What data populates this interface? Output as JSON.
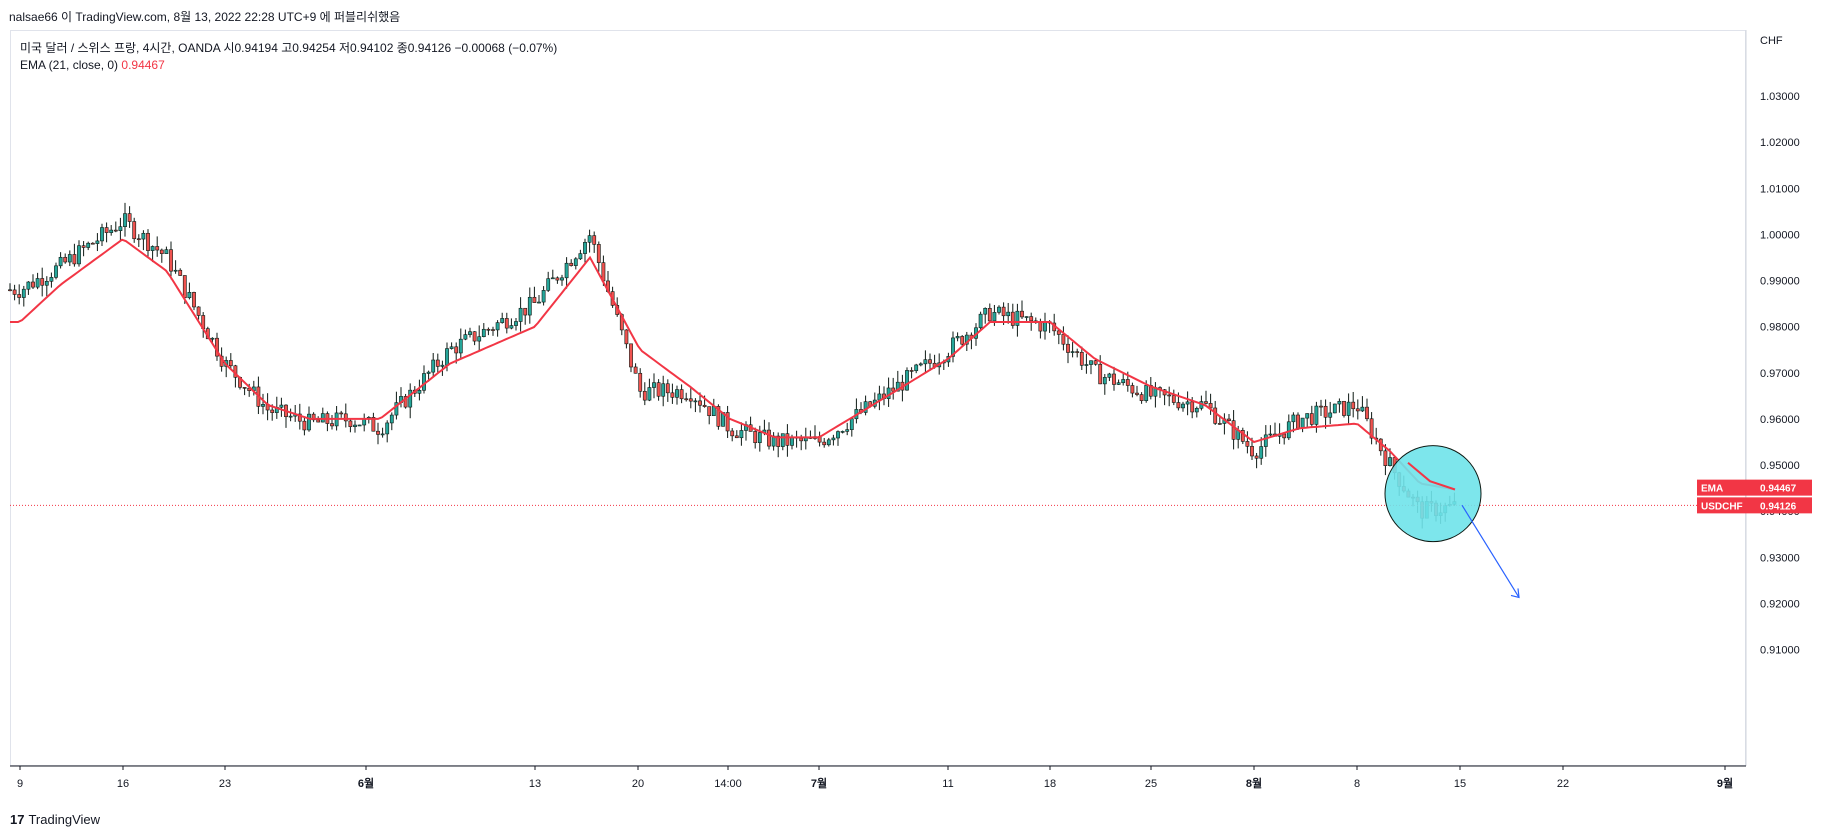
{
  "header": {
    "published": "nalsae66 이 TradingView.com, 8월 13, 2022 22:28 UTC+9 에 퍼블리쉬했음"
  },
  "legend": {
    "symbol_line": "미국 달러 / 스위스 프랑, 4시간, OANDA  시0.94194  고0.94254  저0.94102  종0.94126  −0.00068 (−0.07%)",
    "ema_label": "EMA (21, close, 0)",
    "ema_value": "0.94467"
  },
  "footer": {
    "brand": "TradingView",
    "logo_glyph": "17"
  },
  "colors": {
    "up_candle": "#26a69a",
    "down_candle": "#ef5350",
    "candle_body": "#0e1a14",
    "ema_line": "#f23645",
    "price_line": "#f23645",
    "highlight_fill": "#6fe3ea",
    "arrow": "#2962ff",
    "grid": "#e0e3eb"
  },
  "chart_data": {
    "type": "line",
    "title": "미국 달러 / 스위스 프랑, 4시간, OANDA",
    "y_currency_label": "CHF",
    "ylim": [
      0.9025,
      1.0385
    ],
    "y_ticks": [
      0.91,
      0.92,
      0.93,
      0.94,
      0.95,
      0.96,
      0.97,
      0.98,
      0.99,
      1.0,
      1.01,
      1.02,
      1.03
    ],
    "y_tick_labels": [
      "0.91000",
      "0.92000",
      "0.93000",
      "0.94000",
      "0.95000",
      "0.96000",
      "0.97000",
      "0.98000",
      "0.99000",
      "1.00000",
      "1.01000",
      "1.02000",
      "1.03000"
    ],
    "x_tick_labels": [
      "9",
      "16",
      "23",
      "6월",
      "13",
      "20",
      "14:00",
      "7월",
      "11",
      "18",
      "25",
      "8월",
      "8",
      "15",
      "22",
      "9월"
    ],
    "x_tick_bold": [
      false,
      false,
      false,
      true,
      false,
      false,
      false,
      true,
      false,
      false,
      false,
      true,
      false,
      false,
      false,
      true
    ],
    "series": [
      {
        "name": "USDCHF",
        "x": [
          "5/9",
          "5/12",
          "5/16",
          "5/19",
          "5/23",
          "5/26",
          "5/30",
          "6/2",
          "6/6",
          "6/9",
          "6/13",
          "6/16",
          "6/20",
          "6/23",
          "6/27",
          "6/30",
          "7/4",
          "7/7",
          "7/11",
          "7/14",
          "7/18",
          "7/21",
          "7/25",
          "7/28",
          "8/1",
          "8/4",
          "8/8",
          "8/10",
          "8/11",
          "8/12"
        ],
        "values": [
          0.988,
          0.993,
          1.003,
          0.995,
          0.972,
          0.962,
          0.959,
          0.96,
          0.958,
          0.975,
          0.985,
          1.0,
          0.966,
          0.966,
          0.958,
          0.955,
          0.955,
          0.962,
          0.975,
          0.983,
          0.98,
          0.97,
          0.965,
          0.963,
          0.953,
          0.96,
          0.963,
          0.95,
          0.94,
          0.941
        ]
      },
      {
        "name": "EMA",
        "x": [
          "5/9",
          "5/12",
          "5/16",
          "5/19",
          "5/23",
          "5/26",
          "5/30",
          "6/2",
          "6/6",
          "6/9",
          "6/13",
          "6/16",
          "6/20",
          "6/23",
          "6/27",
          "6/30",
          "7/4",
          "7/7",
          "7/11",
          "7/14",
          "7/18",
          "7/21",
          "7/25",
          "7/28",
          "8/1",
          "8/4",
          "8/8",
          "8/10",
          "8/11",
          "8/12"
        ],
        "values": [
          0.981,
          0.989,
          0.999,
          0.992,
          0.972,
          0.963,
          0.96,
          0.96,
          0.96,
          0.972,
          0.98,
          0.995,
          0.975,
          0.967,
          0.96,
          0.956,
          0.956,
          0.962,
          0.973,
          0.981,
          0.981,
          0.973,
          0.967,
          0.963,
          0.955,
          0.958,
          0.959,
          0.953,
          0.946,
          0.9447
        ]
      }
    ],
    "last_price": 0.94126,
    "ema_last": 0.94467,
    "price_tags": [
      {
        "name": "EMA",
        "value": "0.94467"
      },
      {
        "name": "USDCHF",
        "value": "0.94126"
      }
    ],
    "partial_tick_label": "0.94000",
    "annotation": "circle around latest candles with downward arrow"
  }
}
